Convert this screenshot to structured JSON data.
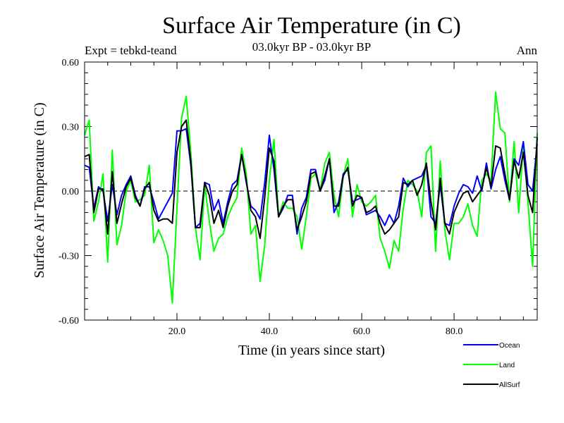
{
  "chart_data": {
    "type": "line",
    "title": "Surface Air Temperature (in C)",
    "subtitle": "03.0kyr BP - 03.0kyr BP",
    "left_label": "Expt = tebkd-teand",
    "right_label": "Ann",
    "xlabel": "Time (in years since start)",
    "ylabel": "Surface Air Temperature (in C)",
    "xlim": [
      0,
      98
    ],
    "ylim": [
      -0.6,
      0.6
    ],
    "x_ticks": [
      20,
      40,
      60,
      80
    ],
    "x_tick_labels": [
      "20.0",
      "40.0",
      "60.0",
      "80.0"
    ],
    "y_ticks": [
      -0.6,
      -0.3,
      0.0,
      0.3,
      0.6
    ],
    "y_tick_labels": [
      "-0.60",
      "-0.30",
      "0.00",
      "0.30",
      "0.60"
    ],
    "zero_line": "dashed",
    "grid": false,
    "legend_position": "bottom-right",
    "series": [
      {
        "name": "Ocean",
        "color": "#0000ff",
        "values": [
          0.12,
          0.11,
          -0.08,
          0.02,
          0.0,
          -0.14,
          0.03,
          -0.11,
          -0.02,
          0.03,
          0.07,
          -0.02,
          -0.07,
          0.02,
          0.02,
          -0.05,
          -0.13,
          -0.09,
          -0.05,
          -0.01,
          0.28,
          0.28,
          0.29,
          0.12,
          -0.17,
          -0.15,
          0.04,
          0.03,
          -0.09,
          -0.04,
          -0.15,
          -0.05,
          0.03,
          0.05,
          0.17,
          0.04,
          -0.07,
          -0.09,
          -0.13,
          0.04,
          0.26,
          0.1,
          -0.12,
          -0.08,
          -0.02,
          -0.02,
          -0.2,
          -0.08,
          -0.03,
          0.1,
          0.1,
          0.0,
          0.05,
          0.15,
          -0.1,
          -0.05,
          0.08,
          0.1,
          -0.05,
          -0.04,
          -0.03,
          -0.11,
          -0.1,
          -0.09,
          -0.12,
          -0.16,
          -0.11,
          -0.15,
          -0.07,
          0.06,
          0.02,
          0.05,
          0.06,
          0.07,
          0.12,
          -0.12,
          -0.15,
          0.03,
          -0.15,
          -0.16,
          -0.07,
          -0.01,
          0.03,
          0.02,
          -0.01,
          0.07,
          0.0,
          0.13,
          0.01,
          0.1,
          0.16,
          0.05,
          -0.04,
          0.15,
          0.12,
          0.23,
          0.03,
          0.0,
          0.22
        ]
      },
      {
        "name": "Land",
        "color": "#00ff00",
        "values": [
          0.26,
          0.33,
          -0.14,
          -0.05,
          0.08,
          -0.33,
          0.19,
          -0.25,
          -0.16,
          0.0,
          0.05,
          -0.05,
          -0.04,
          -0.02,
          0.12,
          -0.24,
          -0.18,
          -0.23,
          -0.3,
          -0.52,
          -0.08,
          0.34,
          0.44,
          0.18,
          -0.17,
          -0.32,
          0.03,
          -0.14,
          -0.28,
          -0.22,
          -0.2,
          -0.12,
          -0.07,
          -0.03,
          0.2,
          0.08,
          -0.2,
          -0.16,
          -0.42,
          -0.25,
          0.05,
          0.24,
          -0.12,
          -0.05,
          -0.08,
          -0.08,
          -0.12,
          -0.27,
          -0.12,
          0.06,
          0.08,
          0.0,
          0.13,
          0.18,
          -0.02,
          -0.12,
          0.07,
          0.15,
          -0.12,
          0.03,
          -0.05,
          -0.07,
          -0.05,
          -0.02,
          -0.22,
          -0.28,
          -0.36,
          -0.23,
          -0.28,
          -0.08,
          0.05,
          0.03,
          0.0,
          -0.12,
          0.18,
          0.21,
          -0.28,
          0.14,
          -0.18,
          -0.32,
          -0.15,
          -0.15,
          -0.12,
          -0.06,
          -0.16,
          -0.21,
          0.05,
          0.08,
          0.05,
          0.46,
          0.29,
          0.27,
          -0.05,
          0.23,
          -0.1,
          0.22,
          -0.05,
          -0.35,
          0.27
        ]
      },
      {
        "name": "AllSurf",
        "color": "#000000",
        "values": [
          0.16,
          0.17,
          -0.1,
          0.01,
          0.01,
          -0.2,
          0.09,
          -0.15,
          -0.06,
          0.02,
          0.06,
          -0.03,
          -0.07,
          0.01,
          0.04,
          -0.09,
          -0.14,
          -0.13,
          -0.13,
          -0.15,
          0.18,
          0.3,
          0.33,
          0.14,
          -0.17,
          -0.17,
          0.04,
          -0.02,
          -0.15,
          -0.09,
          -0.17,
          -0.07,
          0.0,
          0.03,
          0.17,
          0.05,
          -0.09,
          -0.12,
          -0.22,
          -0.03,
          0.2,
          0.14,
          -0.12,
          -0.07,
          -0.04,
          -0.04,
          -0.18,
          -0.12,
          -0.05,
          0.08,
          0.09,
          0.0,
          0.07,
          0.15,
          -0.07,
          -0.07,
          0.07,
          0.11,
          -0.07,
          -0.02,
          -0.03,
          -0.1,
          -0.09,
          -0.07,
          -0.15,
          -0.2,
          -0.18,
          -0.15,
          -0.12,
          0.04,
          0.03,
          0.05,
          -0.02,
          0.03,
          0.13,
          -0.05,
          -0.18,
          0.06,
          -0.15,
          -0.2,
          -0.1,
          -0.05,
          -0.01,
          0.0,
          -0.05,
          -0.02,
          0.01,
          0.11,
          0.02,
          0.21,
          0.2,
          0.08,
          -0.04,
          0.14,
          0.06,
          0.18,
          -0.02,
          -0.1,
          0.25
        ]
      }
    ]
  }
}
